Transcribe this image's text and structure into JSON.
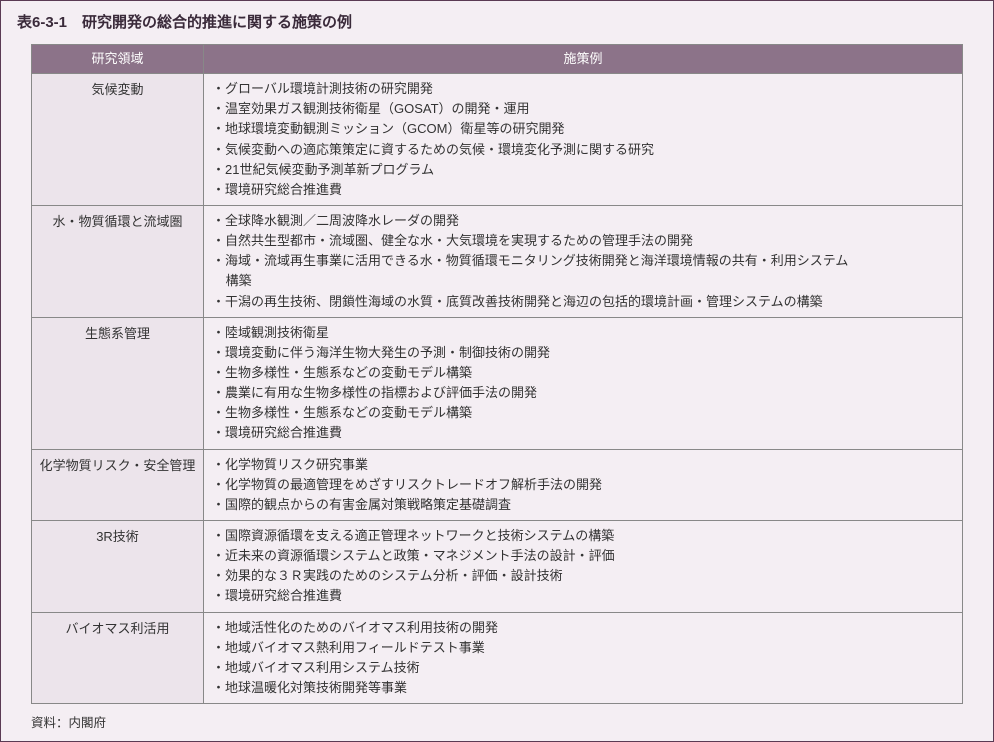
{
  "title": "表6-3-1　研究開発の総合的推進に関する施策の例",
  "columns": {
    "area": "研究領域",
    "examples": "施策例"
  },
  "rows": [
    {
      "area": "気候変動",
      "items": [
        "・グローバル環境計測技術の研究開発",
        "・温室効果ガス観測技術衛星（GOSAT）の開発・運用",
        "・地球環境変動観測ミッション（GCOM）衛星等の研究開発",
        "・気候変動への適応策策定に資するための気候・環境変化予測に関する研究",
        "・21世紀気候変動予測革新プログラム",
        "・環境研究総合推進費"
      ]
    },
    {
      "area": "水・物質循環と流域圏",
      "items": [
        "・全球降水観測／二周波降水レーダの開発",
        "・自然共生型都市・流域圏、健全な水・大気環境を実現するための管理手法の開発",
        {
          "text": "・海域・流域再生事業に活用できる水・物質循環モニタリング技術開発と海洋環境情報の共有・利用システム",
          "cont": "構築"
        },
        "・干潟の再生技術、閉鎖性海域の水質・底質改善技術開発と海辺の包括的環境計画・管理システムの構築"
      ]
    },
    {
      "area": "生態系管理",
      "items": [
        "・陸域観測技術衛星",
        "・環境変動に伴う海洋生物大発生の予測・制御技術の開発",
        "・生物多様性・生態系などの変動モデル構築",
        "・農業に有用な生物多様性の指標および評価手法の開発",
        "・生物多様性・生態系などの変動モデル構築",
        "・環境研究総合推進費"
      ]
    },
    {
      "area": "化学物質リスク・安全管理",
      "items": [
        "・化学物質リスク研究事業",
        "・化学物質の最適管理をめざすリスクトレードオフ解析手法の開発",
        "・国際的観点からの有害金属対策戦略策定基礎調査"
      ]
    },
    {
      "area": "3R技術",
      "items": [
        "・国際資源循環を支える適正管理ネットワークと技術システムの構築",
        "・近未来の資源循環システムと政策・マネジメント手法の設計・評価",
        "・効果的な３Ｒ実践のためのシステム分析・評価・設計技術",
        "・環境研究総合推進費"
      ]
    },
    {
      "area": "バイオマス利活用",
      "items": [
        "・地域活性化のためのバイオマス利用技術の開発",
        "・地域バイオマス熱利用フィールドテスト事業",
        "・地域バイオマス利用システム技術",
        "・地球温暖化対策技術開発等事業"
      ]
    }
  ],
  "source": "資料：内閣府",
  "style": {
    "page_bg": "#f4eef3",
    "header_bg": "#8c7389",
    "header_fg": "#ffffff",
    "area_bg": "#ece4eb",
    "cell_bg": "#f4eef3",
    "border": "#888888",
    "outer_border": "#5a3a53",
    "title_color": "#3a2a3a",
    "font_size_body": 13,
    "font_size_title": 15
  }
}
